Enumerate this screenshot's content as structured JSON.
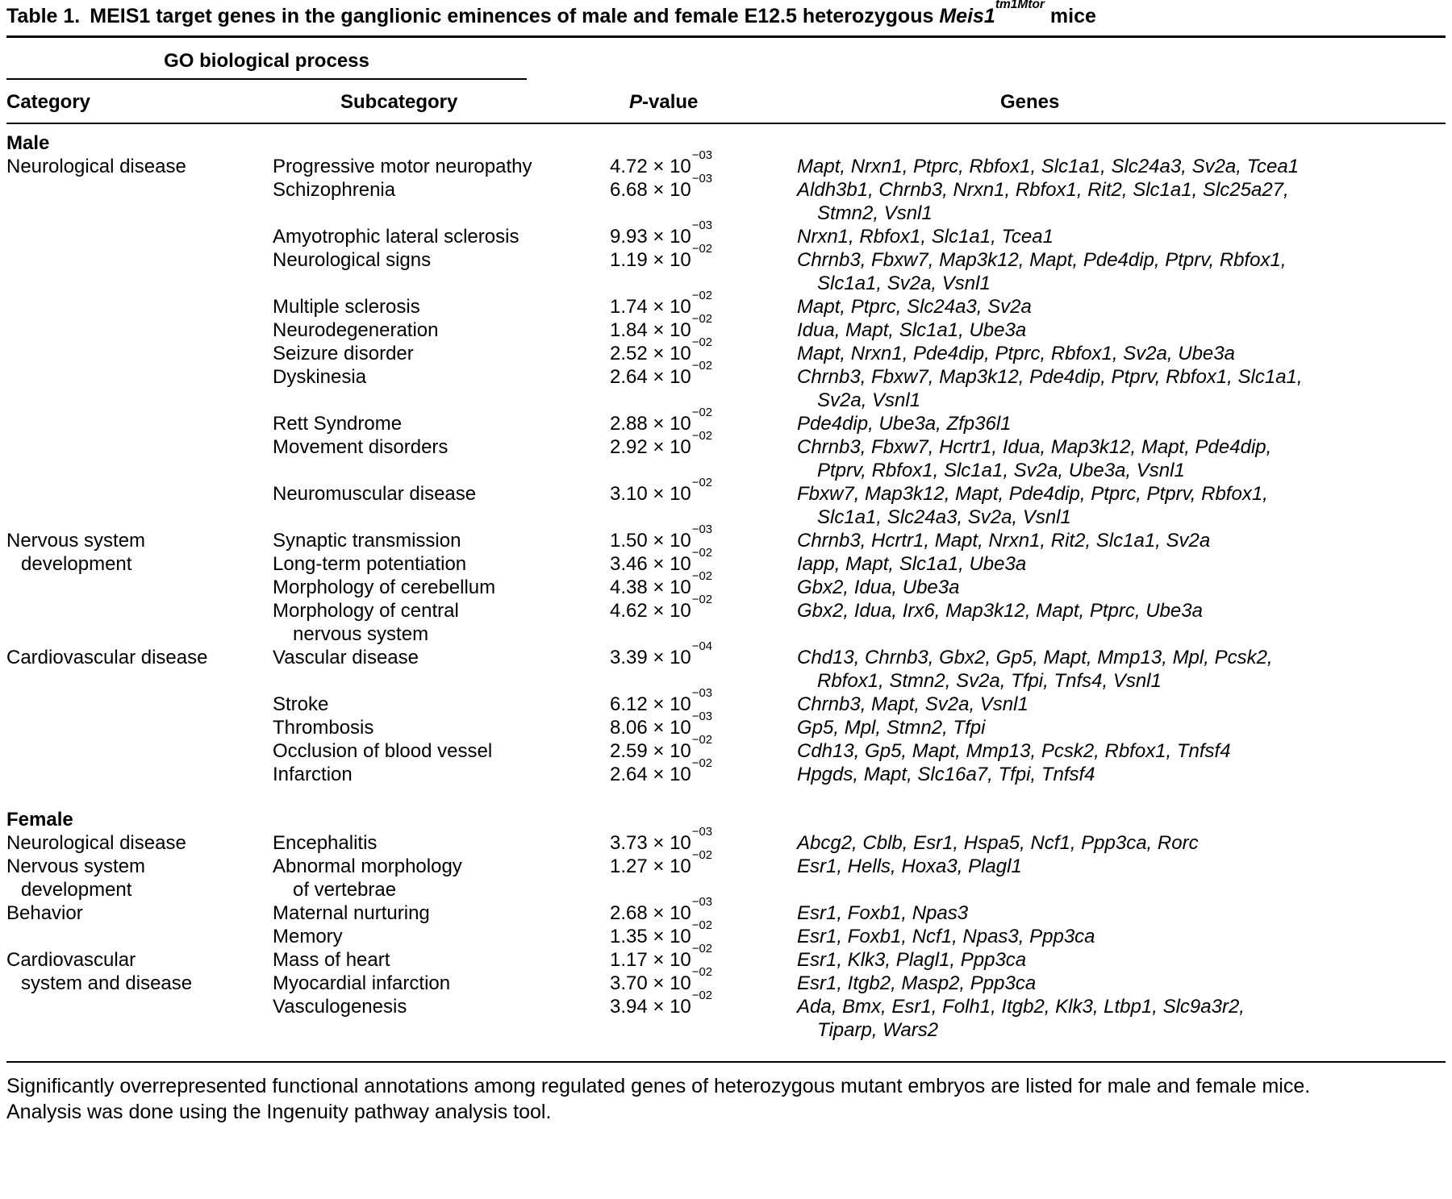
{
  "title": {
    "label": "Table 1.",
    "text": "MEIS1 target genes in the ganglionic eminences of male and female E12.5 heterozygous",
    "gene": "Meis1",
    "sup": "tm1Mtor",
    "suffix": "mice"
  },
  "header": {
    "group": "GO biological process",
    "columns": [
      {
        "label": "Category"
      },
      {
        "label": "Subcategory"
      },
      {
        "italic": "P",
        "label": "-value"
      },
      {
        "label": "Genes"
      }
    ]
  },
  "pvalue_notation": "× 10",
  "sections": [
    {
      "name": "Male",
      "rows": [
        {
          "category": [
            "Neurological disease"
          ],
          "subcategory": [
            "Progressive motor neuropathy"
          ],
          "p": "4.72",
          "exp": "−03",
          "genes": [
            "Mapt, Nrxn1, Ptprc, Rbfox1, Slc1a1, Slc24a3, Sv2a, Tcea1"
          ]
        },
        {
          "subcategory": [
            "Schizophrenia"
          ],
          "p": "6.68",
          "exp": "−03",
          "genes": [
            "Aldh3b1, Chrnb3, Nrxn1, Rbfox1, Rit2, Slc1a1, Slc25a27,",
            "Stmn2, Vsnl1"
          ]
        },
        {
          "subcategory": [
            "Amyotrophic lateral sclerosis"
          ],
          "p": "9.93",
          "exp": "−03",
          "genes": [
            "Nrxn1, Rbfox1, Slc1a1, Tcea1"
          ]
        },
        {
          "subcategory": [
            "Neurological signs"
          ],
          "p": "1.19",
          "exp": "−02",
          "genes": [
            "Chrnb3, Fbxw7, Map3k12, Mapt, Pde4dip, Ptprv, Rbfox1,",
            "Slc1a1, Sv2a, Vsnl1"
          ]
        },
        {
          "subcategory": [
            "Multiple sclerosis"
          ],
          "p": "1.74",
          "exp": "−02",
          "genes": [
            "Mapt, Ptprc, Slc24a3, Sv2a"
          ]
        },
        {
          "subcategory": [
            "Neurodegeneration"
          ],
          "p": "1.84",
          "exp": "−02",
          "genes": [
            "Idua, Mapt, Slc1a1, Ube3a"
          ]
        },
        {
          "subcategory": [
            "Seizure disorder"
          ],
          "p": "2.52",
          "exp": "−02",
          "genes": [
            "Mapt, Nrxn1, Pde4dip, Ptprc, Rbfox1, Sv2a, Ube3a"
          ]
        },
        {
          "subcategory": [
            "Dyskinesia"
          ],
          "p": "2.64",
          "exp": "−02",
          "genes": [
            "Chrnb3, Fbxw7, Map3k12, Pde4dip, Ptprv, Rbfox1, Slc1a1,",
            "Sv2a, Vsnl1"
          ]
        },
        {
          "subcategory": [
            "Rett Syndrome"
          ],
          "p": "2.88",
          "exp": "−02",
          "genes": [
            "Pde4dip, Ube3a, Zfp36l1"
          ]
        },
        {
          "subcategory": [
            "Movement disorders"
          ],
          "p": "2.92",
          "exp": "−02",
          "genes": [
            "Chrnb3, Fbxw7, Hcrtr1, Idua, Map3k12, Mapt, Pde4dip,",
            "Ptprv, Rbfox1, Slc1a1, Sv2a, Ube3a, Vsnl1"
          ]
        },
        {
          "subcategory": [
            "Neuromuscular disease"
          ],
          "p": "3.10",
          "exp": "−02",
          "genes": [
            "Fbxw7, Map3k12, Mapt, Pde4dip, Ptprc, Ptprv, Rbfox1,",
            "Slc1a1, Slc24a3, Sv2a, Vsnl1"
          ]
        },
        {
          "category": [
            "Nervous system",
            "development"
          ],
          "subcategory": [
            "Synaptic transmission"
          ],
          "p": "1.50",
          "exp": "−03",
          "genes": [
            "Chrnb3, Hcrtr1, Mapt, Nrxn1, Rit2, Slc1a1, Sv2a"
          ]
        },
        {
          "subcategory": [
            "Long-term potentiation"
          ],
          "p": "3.46",
          "exp": "−02",
          "genes": [
            "Iapp, Mapt, Slc1a1, Ube3a"
          ]
        },
        {
          "subcategory": [
            "Morphology of cerebellum"
          ],
          "p": "4.38",
          "exp": "−02",
          "genes": [
            "Gbx2, Idua, Ube3a"
          ]
        },
        {
          "subcategory": [
            "Morphology of central",
            "nervous system"
          ],
          "p": "4.62",
          "exp": "−02",
          "genes": [
            "Gbx2, Idua, Irx6, Map3k12, Mapt, Ptprc, Ube3a"
          ]
        },
        {
          "category": [
            "Cardiovascular disease"
          ],
          "subcategory": [
            "Vascular disease"
          ],
          "p": "3.39",
          "exp": "−04",
          "genes": [
            "Chd13, Chrnb3, Gbx2, Gp5, Mapt, Mmp13, Mpl, Pcsk2,",
            "Rbfox1, Stmn2, Sv2a, Tfpi, Tnfs4, Vsnl1"
          ]
        },
        {
          "subcategory": [
            "Stroke"
          ],
          "p": "6.12",
          "exp": "−03",
          "genes": [
            "Chrnb3, Mapt, Sv2a, Vsnl1"
          ]
        },
        {
          "subcategory": [
            "Thrombosis"
          ],
          "p": "8.06",
          "exp": "−03",
          "genes": [
            "Gp5, Mpl, Stmn2, Tfpi"
          ]
        },
        {
          "subcategory": [
            "Occlusion of blood vessel"
          ],
          "p": "2.59",
          "exp": "−02",
          "genes": [
            "Cdh13, Gp5, Mapt, Mmp13, Pcsk2, Rbfox1, Tnfsf4"
          ]
        },
        {
          "subcategory": [
            "Infarction"
          ],
          "p": "2.64",
          "exp": "−02",
          "genes": [
            "Hpgds, Mapt, Slc16a7, Tfpi, Tnfsf4"
          ]
        }
      ]
    },
    {
      "name": "Female",
      "rows": [
        {
          "category": [
            "Neurological disease"
          ],
          "subcategory": [
            "Encephalitis"
          ],
          "p": "3.73",
          "exp": "−03",
          "genes": [
            "Abcg2, Cblb, Esr1, Hspa5, Ncf1, Ppp3ca, Rorc"
          ]
        },
        {
          "category": [
            "Nervous system",
            "development"
          ],
          "subcategory": [
            "Abnormal morphology",
            "of vertebrae"
          ],
          "p": "1.27",
          "exp": "−02",
          "genes": [
            "Esr1, Hells, Hoxa3, Plagl1"
          ]
        },
        {
          "category": [
            "Behavior"
          ],
          "subcategory": [
            "Maternal nurturing"
          ],
          "p": "2.68",
          "exp": "−03",
          "genes": [
            "Esr1, Foxb1, Npas3"
          ]
        },
        {
          "subcategory": [
            "Memory"
          ],
          "p": "1.35",
          "exp": "−02",
          "genes": [
            "Esr1, Foxb1, Ncf1, Npas3, Ppp3ca"
          ]
        },
        {
          "category": [
            "Cardiovascular",
            "system and disease"
          ],
          "subcategory": [
            "Mass of heart"
          ],
          "p": "1.17",
          "exp": "−02",
          "genes": [
            "Esr1, Klk3, Plagl1, Ppp3ca"
          ]
        },
        {
          "subcategory": [
            "Myocardial infarction"
          ],
          "p": "3.70",
          "exp": "−02",
          "genes": [
            "Esr1, Itgb2, Masp2, Ppp3ca"
          ]
        },
        {
          "subcategory": [
            "Vasculogenesis"
          ],
          "p": "3.94",
          "exp": "−02",
          "genes": [
            "Ada, Bmx, Esr1, Folh1, Itgb2, Klk3, Ltbp1, Slc9a3r2,",
            "Tiparp, Wars2"
          ]
        }
      ]
    }
  ],
  "footnote": [
    "Significantly overrepresented functional annotations among regulated genes of heterozygous mutant embryos are listed for male and female mice.",
    "Analysis was done using the Ingenuity pathway analysis tool."
  ]
}
